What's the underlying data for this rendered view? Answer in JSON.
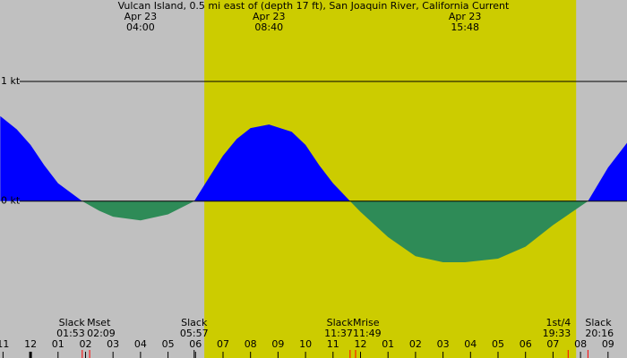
{
  "chart_data": {
    "type": "area",
    "title": "Vulcan Island, 0.5 mi east of (depth 17 ft), San Joaquin River, California Current",
    "background": "#c0c0c0",
    "daylight": [
      6.32,
      19.84
    ],
    "daylight_color": "#cccc00",
    "flood_color": "#0000ff",
    "ebb_color": "#2e8b57",
    "x": [
      -1.1,
      -0.5,
      0,
      0.5,
      1,
      1.88,
      2.5,
      3,
      4,
      5,
      5.95,
      6.5,
      7,
      7.5,
      8,
      8.67,
      9.5,
      10,
      10.5,
      11,
      11.62,
      12,
      13,
      14,
      15,
      15.8,
      17,
      18,
      19,
      20.27,
      21,
      21.7
    ],
    "values": [
      0.71,
      0.6,
      0.47,
      0.3,
      0.15,
      0,
      -0.08,
      -0.13,
      -0.16,
      -0.11,
      0,
      0.2,
      0.38,
      0.52,
      0.61,
      0.64,
      0.58,
      0.47,
      0.3,
      0.15,
      0,
      -0.09,
      -0.3,
      -0.46,
      -0.51,
      -0.51,
      -0.48,
      -0.38,
      -0.2,
      0,
      0.28,
      0.49
    ],
    "xlim": [
      -1.11,
      21.69
    ],
    "ylim": [
      -1.31,
      1.68
    ],
    "yticks": [
      {
        "value": 1,
        "label": "1 kt"
      },
      {
        "value": 0,
        "label": "0 kt"
      }
    ],
    "xticks": [
      {
        "value": -1,
        "label": "11"
      },
      {
        "value": 0,
        "label": "12"
      },
      {
        "value": 1,
        "label": "01"
      },
      {
        "value": 2,
        "label": "02"
      },
      {
        "value": 3,
        "label": "03"
      },
      {
        "value": 4,
        "label": "04"
      },
      {
        "value": 5,
        "label": "05"
      },
      {
        "value": 6,
        "label": "06"
      },
      {
        "value": 7,
        "label": "07"
      },
      {
        "value": 8,
        "label": "08"
      },
      {
        "value": 9,
        "label": "09"
      },
      {
        "value": 10,
        "label": "10"
      },
      {
        "value": 11,
        "label": "11"
      },
      {
        "value": 12,
        "label": "12"
      },
      {
        "value": 13,
        "label": "01"
      },
      {
        "value": 14,
        "label": "02"
      },
      {
        "value": 15,
        "label": "03"
      },
      {
        "value": 16,
        "label": "04"
      },
      {
        "value": 17,
        "label": "05"
      },
      {
        "value": 18,
        "label": "06"
      },
      {
        "value": 19,
        "label": "07"
      },
      {
        "value": 20,
        "label": "08"
      },
      {
        "value": 21,
        "label": "09"
      }
    ],
    "top_labels": [
      {
        "x": 4,
        "date": "Apr 23",
        "time": "04:00"
      },
      {
        "x": 8.67,
        "date": "Apr 23",
        "time": "08:40"
      },
      {
        "x": 15.8,
        "date": "Apr 23",
        "time": "15:48"
      }
    ],
    "events": [
      {
        "x": 1.88,
        "name": "Slack",
        "time": "01:53",
        "anchor": "end"
      },
      {
        "x": 2.15,
        "name": "Mset",
        "time": "02:09",
        "anchor": "start"
      },
      {
        "x": 5.95,
        "name": "Slack",
        "time": "05:57",
        "anchor": "middle"
      },
      {
        "x": 11.62,
        "name": "Slack",
        "time": "11:37",
        "anchor": "end"
      },
      {
        "x": 11.82,
        "name": "Mrise",
        "time": "11:49",
        "anchor": "start"
      },
      {
        "x": 19.55,
        "name": "1st/4",
        "time": "19:33",
        "anchor": "end"
      },
      {
        "x": 20.27,
        "name": "Slack",
        "time": "20:16",
        "anchor": "start"
      }
    ]
  }
}
